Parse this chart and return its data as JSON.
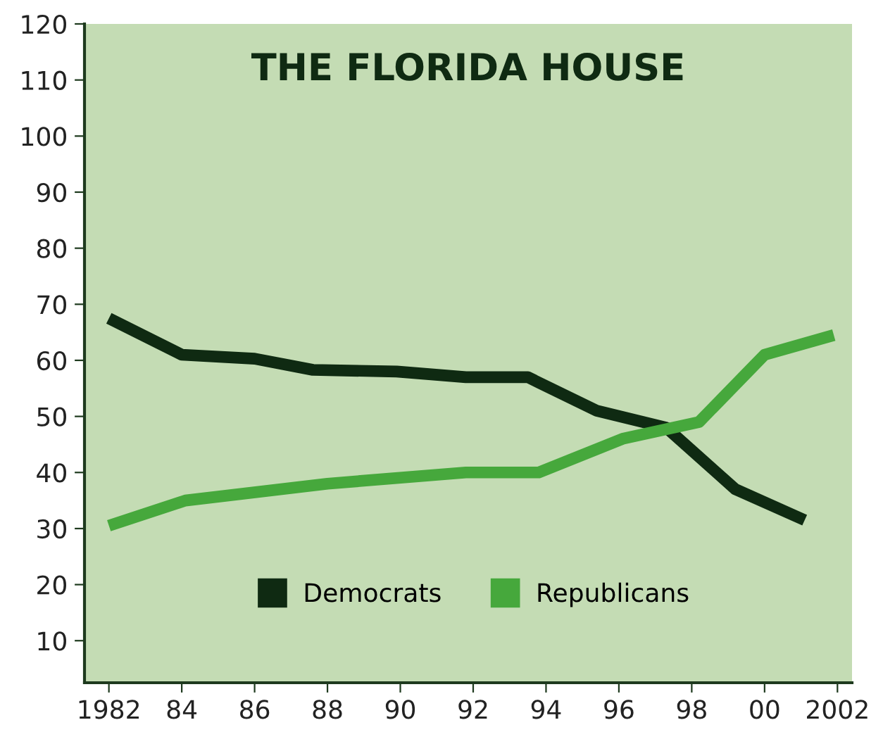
{
  "chart_data": {
    "type": "line",
    "title": "THE FLORIDA HOUSE",
    "xlim": [
      1981.33,
      2002.4
    ],
    "ylim": [
      2.5,
      120
    ],
    "xticks": [
      {
        "value": 1982,
        "label": "1982"
      },
      {
        "value": 1984,
        "label": "84"
      },
      {
        "value": 1986,
        "label": "86"
      },
      {
        "value": 1988,
        "label": "88"
      },
      {
        "value": 1990,
        "label": "90"
      },
      {
        "value": 1992,
        "label": "92"
      },
      {
        "value": 1994,
        "label": "94"
      },
      {
        "value": 1996,
        "label": "96"
      },
      {
        "value": 1998,
        "label": "98"
      },
      {
        "value": 2000,
        "label": "00"
      },
      {
        "value": 2002,
        "label": "2002"
      }
    ],
    "yticks": [
      10,
      20,
      30,
      40,
      50,
      60,
      70,
      80,
      90,
      100,
      110,
      120
    ],
    "grid": false,
    "legend": "bottom",
    "marker": "none",
    "line_style": "solid",
    "series": [
      {
        "name": "Democrats",
        "color": "#0f2a12",
        "x": [
          1982,
          1984,
          1986,
          1987.6,
          1989.9,
          1991.8,
          1993.5,
          1995.4,
          1997.3,
          1999.2,
          2001.1
        ],
        "values": [
          67.5,
          61,
          60.3,
          58.3,
          58,
          57,
          57,
          51,
          48,
          37,
          31.5
        ]
      },
      {
        "name": "Republicans",
        "color": "#46a83c",
        "x": [
          1982,
          1984.1,
          1988,
          1991.8,
          1993.8,
          1996.1,
          1998.2,
          2000,
          2001.9
        ],
        "values": [
          30.5,
          35,
          38,
          40,
          40,
          46,
          49,
          61,
          64.5
        ]
      }
    ]
  }
}
